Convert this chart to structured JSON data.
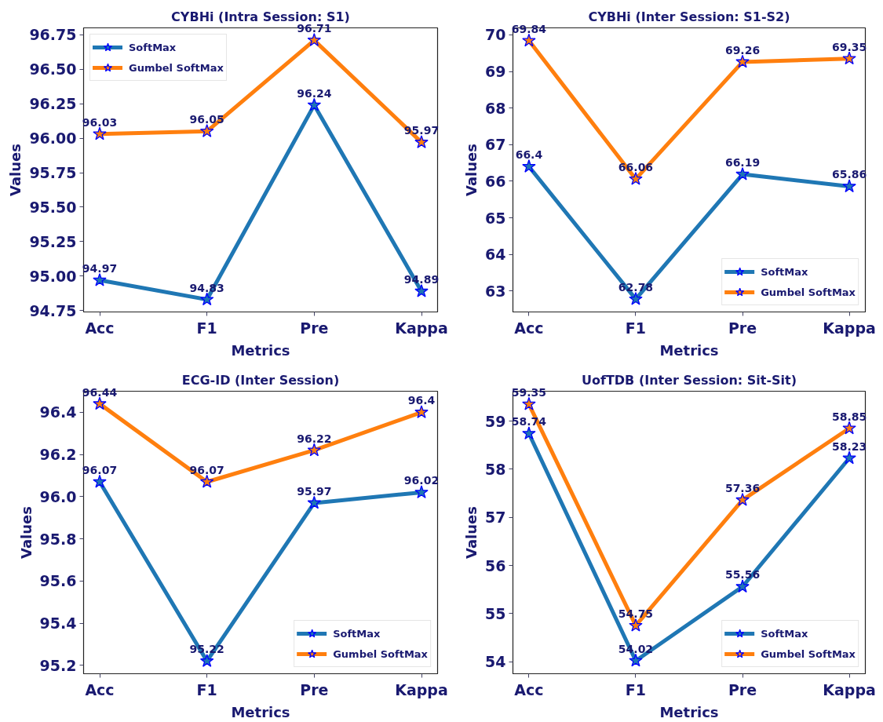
{
  "chart_data": [
    {
      "type": "line",
      "title": "CYBHi (Intra Session: S1)",
      "xlabel": "Metrics",
      "ylabel": "Values",
      "categories": [
        "Acc",
        "F1",
        "Pre",
        "Kappa"
      ],
      "series": [
        {
          "name": "SoftMax",
          "color": "#1f77b4",
          "values": [
            94.97,
            94.83,
            96.24,
            94.89
          ]
        },
        {
          "name": "Gumbel SoftMax",
          "color": "#ff7f0e",
          "values": [
            96.03,
            96.05,
            96.71,
            95.97
          ]
        }
      ],
      "ylim": [
        94.74,
        96.8
      ],
      "yticks": [
        94.75,
        {
          "value": 95,
          "label": "95.00"
        },
        95.25,
        {
          "value": 95.5,
          "label": "95.50"
        },
        95.75,
        {
          "value": 96,
          "label": "96.00"
        },
        96.25,
        {
          "value": 96.5,
          "label": "96.50"
        },
        96.75
      ],
      "data_labels": true,
      "legend": "top left",
      "marker": "star"
    },
    {
      "type": "line",
      "title": "CYBHi (Inter Session: S1-S2)",
      "xlabel": "Metrics",
      "ylabel": "Values",
      "categories": [
        "Acc",
        "F1",
        "Pre",
        "Kappa"
      ],
      "series": [
        {
          "name": "SoftMax",
          "color": "#1f77b4",
          "values": [
            66.4,
            62.78,
            66.19,
            65.86
          ]
        },
        {
          "name": "Gumbel SoftMax",
          "color": "#ff7f0e",
          "values": [
            69.84,
            66.06,
            69.26,
            69.35
          ]
        }
      ],
      "ylim": [
        62.43,
        70.19
      ],
      "yticks": [
        63,
        64,
        65,
        66,
        67,
        68,
        69,
        70
      ],
      "data_labels": true,
      "legend": "bottom right",
      "marker": "star"
    },
    {
      "type": "line",
      "title": "ECG-ID (Inter Session)",
      "xlabel": "Metrics",
      "ylabel": "Values",
      "categories": [
        "Acc",
        "F1",
        "Pre",
        "Kappa"
      ],
      "series": [
        {
          "name": "SoftMax",
          "color": "#1f77b4",
          "values": [
            96.07,
            95.22,
            95.97,
            96.02
          ]
        },
        {
          "name": "Gumbel SoftMax",
          "color": "#ff7f0e",
          "values": [
            96.44,
            96.07,
            96.22,
            96.4
          ]
        }
      ],
      "ylim": [
        95.16,
        96.5
      ],
      "yticks": [
        95.2,
        95.4,
        95.6,
        95.8,
        {
          "value": 96,
          "label": "96.0"
        },
        96.2,
        96.4
      ],
      "data_labels": true,
      "legend": "bottom right",
      "marker": "star"
    },
    {
      "type": "line",
      "title": "UofTDB (Inter Session: Sit-Sit)",
      "xlabel": "Metrics",
      "ylabel": "Values",
      "categories": [
        "Acc",
        "F1",
        "Pre",
        "Kappa"
      ],
      "series": [
        {
          "name": "SoftMax",
          "color": "#1f77b4",
          "values": [
            58.74,
            54.02,
            55.56,
            58.23
          ]
        },
        {
          "name": "Gumbel SoftMax",
          "color": "#ff7f0e",
          "values": [
            59.35,
            54.75,
            57.36,
            58.85
          ]
        }
      ],
      "ylim": [
        53.75,
        59.62
      ],
      "yticks": [
        54,
        55,
        56,
        57,
        58,
        59
      ],
      "data_labels": true,
      "legend": "bottom right",
      "marker": "star"
    }
  ]
}
